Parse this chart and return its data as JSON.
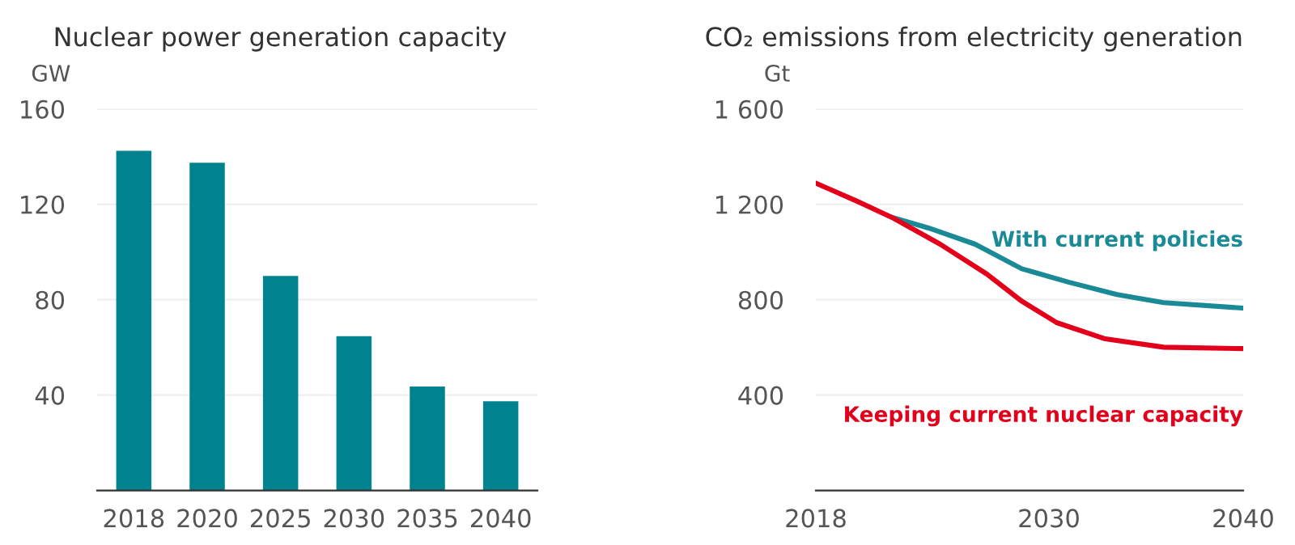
{
  "chart_data": [
    {
      "type": "bar",
      "title": "Nuclear power generation capacity",
      "ylabel": "GW",
      "categories": [
        "2018",
        "2020",
        "2025",
        "2030",
        "2035",
        "2040"
      ],
      "values": [
        142.5,
        137.5,
        90,
        64.7,
        43.6,
        37.4
      ],
      "color": "#00838f",
      "ylim": [
        0,
        160
      ],
      "yticks": [
        {
          "value": 0,
          "label": null
        },
        40,
        80,
        120,
        160
      ],
      "grid": "y"
    },
    {
      "type": "line",
      "title": "CO₂ emissions from electricity generation",
      "ylabel": "Gt",
      "xlim": [
        2018,
        2040
      ],
      "xticks": [
        2018,
        2030,
        2040
      ],
      "ylim": [
        0,
        1600
      ],
      "yticks": [
        {
          "value": 0,
          "label": null
        },
        400,
        800,
        {
          "value": 1200,
          "label": "1 200"
        },
        {
          "value": 1600,
          "label": "1 600"
        }
      ],
      "grid": "y",
      "legend": false,
      "series": [
        {
          "name": "With current policies",
          "color": "#1a8a96",
          "x": [
            2021.9,
            2023.8,
            2026.2,
            2028.6,
            2031,
            2033.5,
            2035.9,
            2040
          ],
          "values": [
            1146,
            1101,
            1033,
            930,
            874,
            822,
            788,
            765
          ]
        },
        {
          "name": "Keeping current nuclear capacity",
          "color": "#e3001b",
          "x": [
            2018,
            2020.1,
            2021.9,
            2024.4,
            2026.8,
            2028.6,
            2030.4,
            2032.9,
            2035.9,
            2040
          ],
          "values": [
            1289,
            1214,
            1146,
            1033,
            908,
            794,
            704,
            636,
            601,
            595
          ]
        }
      ]
    }
  ]
}
